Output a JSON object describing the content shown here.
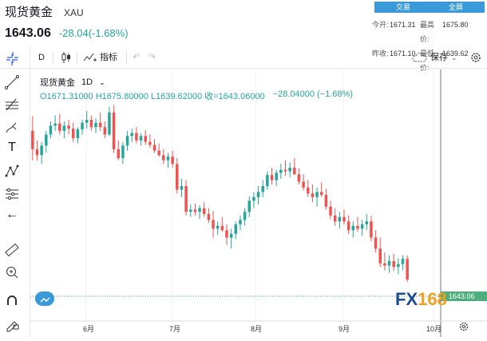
{
  "header": {
    "name": "现货黄金",
    "symbol": "XAU",
    "price": "1643.06",
    "change": "-28.04(-1.68%)",
    "trade_btn": "交易",
    "fullscreen_btn": "全屏",
    "stats": {
      "open_label": "今开:",
      "open": "1671.31",
      "high_label": "最高价:",
      "high": "1675.80",
      "prev_label": "昨收:",
      "prev": "1671.10",
      "low_label": "最低价:",
      "low": "1639.62"
    }
  },
  "toolbar": {
    "interval": "D",
    "indicators": "指标",
    "save": "保存"
  },
  "legend": {
    "name": "现货黄金",
    "interval": "1D",
    "ohlc": "O1671.31000  H1675.80000  L1639.62000  收=1643.06000",
    "change": "−28.04000 (−1.68%)"
  },
  "watermark": "FX168",
  "price_tag": "1643.06",
  "colors": {
    "up": "#26a69a",
    "down": "#ef5350",
    "accent": "#3a9ad9"
  },
  "chart_data": {
    "type": "candlestick",
    "x_labels": [
      "6月",
      "7月",
      "8月",
      "9月",
      "10月"
    ],
    "candles": [
      {
        "o": 1845,
        "h": 1865,
        "l": 1805,
        "c": 1820
      },
      {
        "o": 1820,
        "h": 1832,
        "l": 1805,
        "c": 1812
      },
      {
        "o": 1812,
        "h": 1830,
        "l": 1800,
        "c": 1825
      },
      {
        "o": 1825,
        "h": 1845,
        "l": 1815,
        "c": 1840
      },
      {
        "o": 1840,
        "h": 1858,
        "l": 1835,
        "c": 1852
      },
      {
        "o": 1852,
        "h": 1866,
        "l": 1845,
        "c": 1855
      },
      {
        "o": 1855,
        "h": 1868,
        "l": 1840,
        "c": 1845
      },
      {
        "o": 1845,
        "h": 1858,
        "l": 1835,
        "c": 1852
      },
      {
        "o": 1852,
        "h": 1860,
        "l": 1840,
        "c": 1848
      },
      {
        "o": 1848,
        "h": 1856,
        "l": 1830,
        "c": 1835
      },
      {
        "o": 1835,
        "h": 1850,
        "l": 1828,
        "c": 1847
      },
      {
        "o": 1847,
        "h": 1860,
        "l": 1840,
        "c": 1856
      },
      {
        "o": 1856,
        "h": 1872,
        "l": 1848,
        "c": 1860
      },
      {
        "o": 1860,
        "h": 1866,
        "l": 1845,
        "c": 1850
      },
      {
        "o": 1850,
        "h": 1862,
        "l": 1842,
        "c": 1856
      },
      {
        "o": 1856,
        "h": 1870,
        "l": 1845,
        "c": 1850
      },
      {
        "o": 1850,
        "h": 1858,
        "l": 1835,
        "c": 1840
      },
      {
        "o": 1840,
        "h": 1878,
        "l": 1838,
        "c": 1870
      },
      {
        "o": 1870,
        "h": 1880,
        "l": 1815,
        "c": 1820
      },
      {
        "o": 1820,
        "h": 1832,
        "l": 1805,
        "c": 1808
      },
      {
        "o": 1808,
        "h": 1830,
        "l": 1800,
        "c": 1825
      },
      {
        "o": 1825,
        "h": 1845,
        "l": 1818,
        "c": 1838
      },
      {
        "o": 1838,
        "h": 1848,
        "l": 1830,
        "c": 1842
      },
      {
        "o": 1842,
        "h": 1850,
        "l": 1828,
        "c": 1832
      },
      {
        "o": 1832,
        "h": 1842,
        "l": 1825,
        "c": 1838
      },
      {
        "o": 1838,
        "h": 1846,
        "l": 1826,
        "c": 1830
      },
      {
        "o": 1830,
        "h": 1840,
        "l": 1822,
        "c": 1826
      },
      {
        "o": 1826,
        "h": 1834,
        "l": 1815,
        "c": 1818
      },
      {
        "o": 1818,
        "h": 1828,
        "l": 1810,
        "c": 1812
      },
      {
        "o": 1812,
        "h": 1820,
        "l": 1800,
        "c": 1805
      },
      {
        "o": 1805,
        "h": 1815,
        "l": 1795,
        "c": 1810
      },
      {
        "o": 1810,
        "h": 1818,
        "l": 1795,
        "c": 1800
      },
      {
        "o": 1800,
        "h": 1808,
        "l": 1760,
        "c": 1765
      },
      {
        "o": 1765,
        "h": 1780,
        "l": 1755,
        "c": 1770
      },
      {
        "o": 1770,
        "h": 1778,
        "l": 1730,
        "c": 1735
      },
      {
        "o": 1735,
        "h": 1745,
        "l": 1728,
        "c": 1738
      },
      {
        "o": 1738,
        "h": 1746,
        "l": 1730,
        "c": 1735
      },
      {
        "o": 1735,
        "h": 1744,
        "l": 1725,
        "c": 1740
      },
      {
        "o": 1740,
        "h": 1748,
        "l": 1728,
        "c": 1732
      },
      {
        "o": 1732,
        "h": 1740,
        "l": 1720,
        "c": 1724
      },
      {
        "o": 1724,
        "h": 1736,
        "l": 1700,
        "c": 1712
      },
      {
        "o": 1712,
        "h": 1722,
        "l": 1704,
        "c": 1716
      },
      {
        "o": 1716,
        "h": 1728,
        "l": 1708,
        "c": 1710
      },
      {
        "o": 1710,
        "h": 1718,
        "l": 1690,
        "c": 1700
      },
      {
        "o": 1700,
        "h": 1712,
        "l": 1685,
        "c": 1705
      },
      {
        "o": 1705,
        "h": 1722,
        "l": 1698,
        "c": 1718
      },
      {
        "o": 1718,
        "h": 1730,
        "l": 1710,
        "c": 1724
      },
      {
        "o": 1724,
        "h": 1740,
        "l": 1716,
        "c": 1735
      },
      {
        "o": 1735,
        "h": 1756,
        "l": 1728,
        "c": 1750
      },
      {
        "o": 1750,
        "h": 1762,
        "l": 1740,
        "c": 1755
      },
      {
        "o": 1755,
        "h": 1770,
        "l": 1745,
        "c": 1762
      },
      {
        "o": 1762,
        "h": 1778,
        "l": 1755,
        "c": 1770
      },
      {
        "o": 1770,
        "h": 1790,
        "l": 1765,
        "c": 1785
      },
      {
        "o": 1785,
        "h": 1795,
        "l": 1772,
        "c": 1778
      },
      {
        "o": 1778,
        "h": 1792,
        "l": 1770,
        "c": 1788
      },
      {
        "o": 1788,
        "h": 1800,
        "l": 1780,
        "c": 1792
      },
      {
        "o": 1792,
        "h": 1805,
        "l": 1784,
        "c": 1790
      },
      {
        "o": 1790,
        "h": 1802,
        "l": 1782,
        "c": 1795
      },
      {
        "o": 1795,
        "h": 1808,
        "l": 1785,
        "c": 1786
      },
      {
        "o": 1786,
        "h": 1794,
        "l": 1772,
        "c": 1776
      },
      {
        "o": 1776,
        "h": 1786,
        "l": 1764,
        "c": 1768
      },
      {
        "o": 1768,
        "h": 1778,
        "l": 1755,
        "c": 1760
      },
      {
        "o": 1760,
        "h": 1772,
        "l": 1748,
        "c": 1755
      },
      {
        "o": 1755,
        "h": 1768,
        "l": 1742,
        "c": 1762
      },
      {
        "o": 1762,
        "h": 1775,
        "l": 1755,
        "c": 1758
      },
      {
        "o": 1758,
        "h": 1766,
        "l": 1738,
        "c": 1742
      },
      {
        "o": 1742,
        "h": 1750,
        "l": 1725,
        "c": 1730
      },
      {
        "o": 1730,
        "h": 1740,
        "l": 1716,
        "c": 1722
      },
      {
        "o": 1722,
        "h": 1735,
        "l": 1712,
        "c": 1728
      },
      {
        "o": 1728,
        "h": 1738,
        "l": 1718,
        "c": 1722
      },
      {
        "o": 1722,
        "h": 1730,
        "l": 1705,
        "c": 1710
      },
      {
        "o": 1710,
        "h": 1722,
        "l": 1700,
        "c": 1716
      },
      {
        "o": 1716,
        "h": 1728,
        "l": 1708,
        "c": 1712
      },
      {
        "o": 1712,
        "h": 1724,
        "l": 1702,
        "c": 1718
      },
      {
        "o": 1718,
        "h": 1732,
        "l": 1710,
        "c": 1722
      },
      {
        "o": 1722,
        "h": 1730,
        "l": 1695,
        "c": 1700
      },
      {
        "o": 1700,
        "h": 1710,
        "l": 1680,
        "c": 1685
      },
      {
        "o": 1685,
        "h": 1700,
        "l": 1660,
        "c": 1665
      },
      {
        "o": 1665,
        "h": 1680,
        "l": 1655,
        "c": 1662
      },
      {
        "o": 1662,
        "h": 1676,
        "l": 1652,
        "c": 1668
      },
      {
        "o": 1668,
        "h": 1678,
        "l": 1655,
        "c": 1660
      },
      {
        "o": 1660,
        "h": 1672,
        "l": 1650,
        "c": 1664
      },
      {
        "o": 1664,
        "h": 1676,
        "l": 1656,
        "c": 1671
      },
      {
        "o": 1671,
        "h": 1675.8,
        "l": 1639.62,
        "c": 1643.06
      }
    ]
  }
}
